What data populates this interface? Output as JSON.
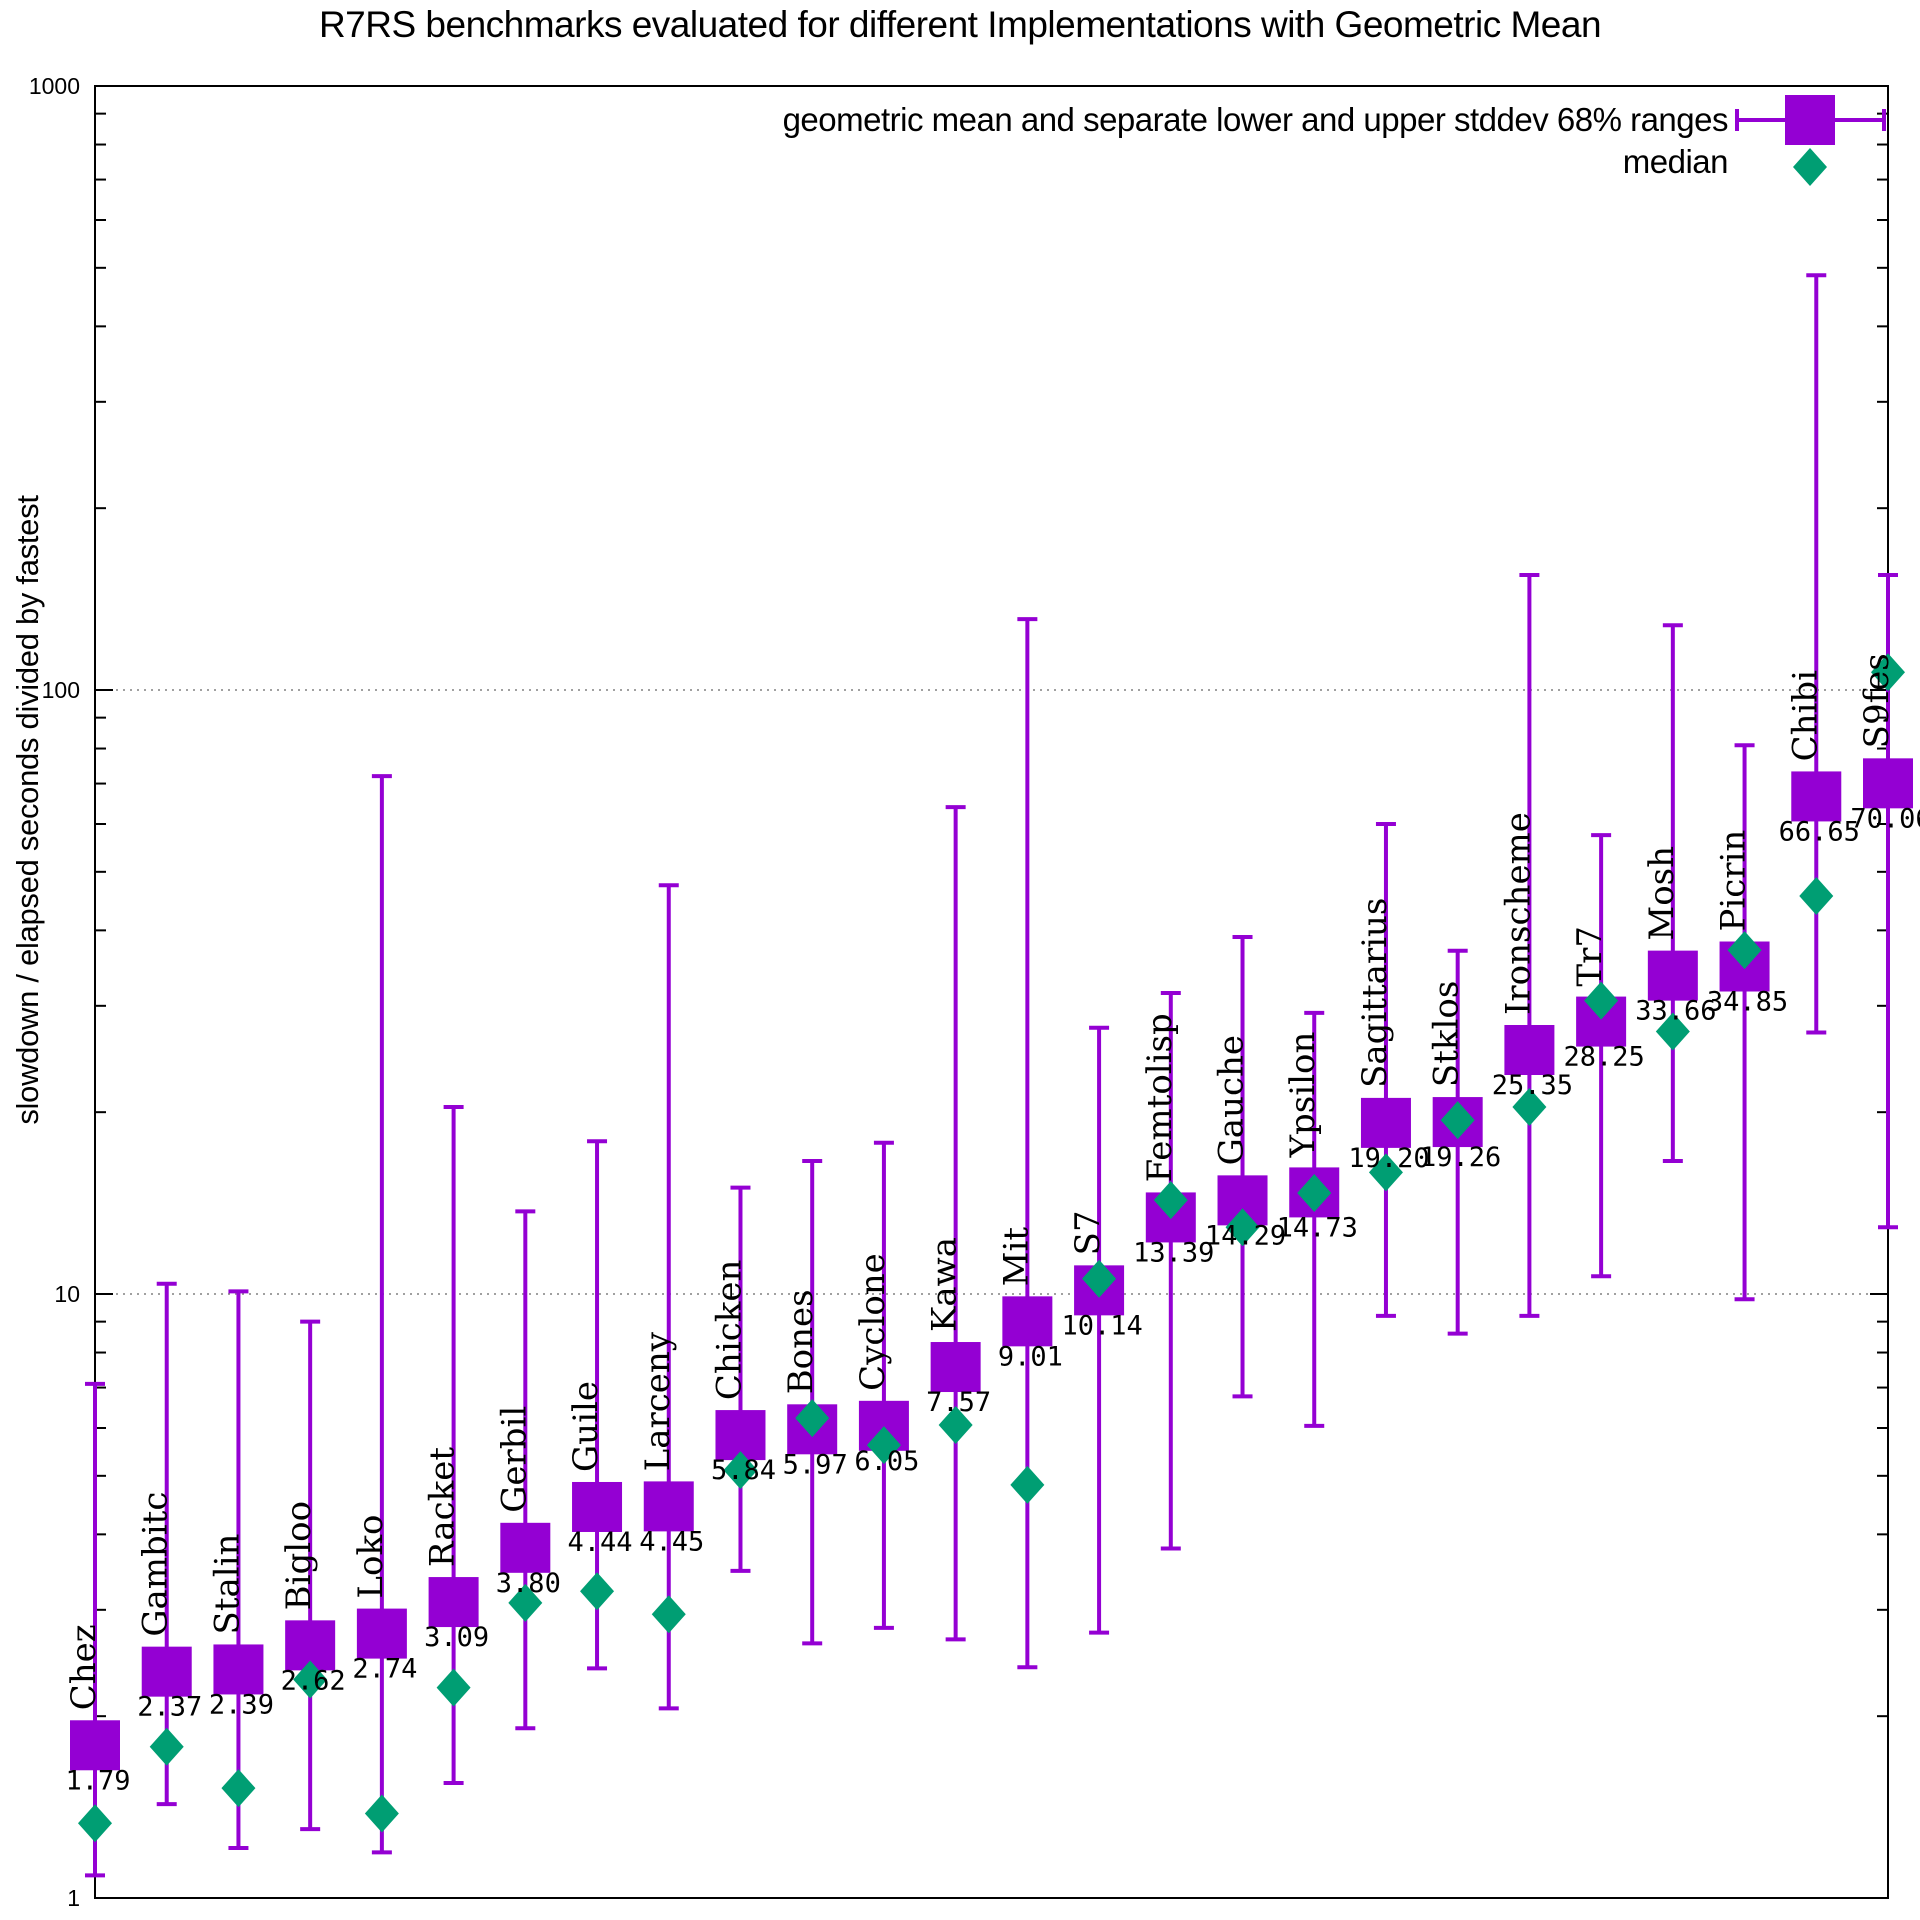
{
  "title": "R7RS benchmarks evaluated for different Implementations with Geometric Mean",
  "y_axis": {
    "label": "slowdown / elapsed seconds divided by fastest",
    "ticks": [
      "1000",
      "100",
      "10",
      "1"
    ]
  },
  "legend": {
    "geomean_label": "geometric mean and separate lower and upper stddev 68% ranges",
    "median_label": "median"
  },
  "colors": {
    "geomean": "#9400d3",
    "median": "#009e73",
    "grid": "#808080",
    "axis": "#000000"
  },
  "chart_data": {
    "type": "scatter",
    "subtype": "errorbars-with-median",
    "title": "R7RS benchmarks evaluated for different Implementations with Geometric Mean",
    "xlabel": "",
    "ylabel": "slowdown / elapsed seconds divided by fastest",
    "yscale": "log",
    "ylim": [
      1,
      1000
    ],
    "grid_lines": [
      10,
      100
    ],
    "grid": "dotted-horizontal",
    "legend_position": "top-right",
    "series": [
      {
        "name": "geometric mean and separate lower and upper stddev 68% ranges",
        "marker": "square",
        "color": "#9400d3"
      },
      {
        "name": "median",
        "marker": "diamond",
        "color": "#009e73"
      }
    ],
    "points": [
      {
        "name": "Chez",
        "geomean": 1.79,
        "label": "1.79",
        "median": 1.33,
        "lo": 1.09,
        "hi": 7.1
      },
      {
        "name": "Gambitc",
        "geomean": 2.37,
        "label": "2.37",
        "median": 1.78,
        "lo": 1.43,
        "hi": 10.4
      },
      {
        "name": "Stalin",
        "geomean": 2.39,
        "label": "2.39",
        "median": 1.52,
        "lo": 1.21,
        "hi": 10.1
      },
      {
        "name": "Bigloo",
        "geomean": 2.62,
        "label": "2.62",
        "median": 2.3,
        "lo": 1.3,
        "hi": 9.0
      },
      {
        "name": "Loko",
        "geomean": 2.74,
        "label": "2.74",
        "median": 1.38,
        "lo": 1.19,
        "hi": 72
      },
      {
        "name": "Racket",
        "geomean": 3.09,
        "label": "3.09",
        "median": 2.23,
        "lo": 1.55,
        "hi": 20.4
      },
      {
        "name": "Gerbil",
        "geomean": 3.8,
        "label": "3.80",
        "median": 3.08,
        "lo": 1.91,
        "hi": 13.7
      },
      {
        "name": "Guile",
        "geomean": 4.44,
        "label": "4.44",
        "median": 3.22,
        "lo": 2.4,
        "hi": 17.9
      },
      {
        "name": "Larceny",
        "geomean": 4.45,
        "label": "4.45",
        "median": 2.95,
        "lo": 2.06,
        "hi": 47.5
      },
      {
        "name": "Chicken",
        "geomean": 5.84,
        "label": "5.84",
        "median": 5.11,
        "lo": 3.48,
        "hi": 15.0
      },
      {
        "name": "Bones",
        "geomean": 5.97,
        "label": "5.97",
        "median": 6.23,
        "lo": 2.64,
        "hi": 16.6
      },
      {
        "name": "Cyclone",
        "geomean": 6.05,
        "label": "6.05",
        "median": 5.62,
        "lo": 2.8,
        "hi": 17.8
      },
      {
        "name": "Kawa",
        "geomean": 7.57,
        "label": "7.57",
        "median": 6.07,
        "lo": 2.68,
        "hi": 64
      },
      {
        "name": "Mit",
        "geomean": 9.01,
        "label": "9.01",
        "median": 4.83,
        "lo": 2.41,
        "hi": 131
      },
      {
        "name": "S7",
        "geomean": 10.14,
        "label": "10.14",
        "median": 10.6,
        "lo": 2.75,
        "hi": 27.6
      },
      {
        "name": "Femtolisp",
        "geomean": 13.39,
        "label": "13.39",
        "median": 14.3,
        "lo": 3.79,
        "hi": 31.5
      },
      {
        "name": "Gauche",
        "geomean": 14.29,
        "label": "14.29",
        "median": 12.9,
        "lo": 6.77,
        "hi": 39
      },
      {
        "name": "Ypsilon",
        "geomean": 14.73,
        "label": "14.73",
        "median": 14.7,
        "lo": 6.05,
        "hi": 29.2
      },
      {
        "name": "Sagittarius",
        "geomean": 19.2,
        "label": "19.20",
        "median": 15.9,
        "lo": 9.2,
        "hi": 60
      },
      {
        "name": "Stklos",
        "geomean": 19.26,
        "label": "19.26",
        "median": 19.4,
        "lo": 8.6,
        "hi": 37
      },
      {
        "name": "Ironscheme",
        "geomean": 25.35,
        "label": "25.35",
        "median": 20.4,
        "lo": 9.2,
        "hi": 155
      },
      {
        "name": "Tr7",
        "geomean": 28.25,
        "label": "28.25",
        "median": 30.6,
        "lo": 10.7,
        "hi": 57.5
      },
      {
        "name": "Mosh",
        "geomean": 33.66,
        "label": "33.66",
        "median": 27.2,
        "lo": 16.6,
        "hi": 128
      },
      {
        "name": "Picrin",
        "geomean": 34.85,
        "label": "34.85",
        "median": 37.1,
        "lo": 9.8,
        "hi": 81
      },
      {
        "name": "Chibi",
        "geomean": 66.65,
        "label": "66.65",
        "median": 45.6,
        "lo": 27.1,
        "hi": 486
      },
      {
        "name": "S9fes",
        "geomean": 70.06,
        "label": "70.06",
        "median": 107,
        "lo": 12.9,
        "hi": 155
      }
    ]
  }
}
